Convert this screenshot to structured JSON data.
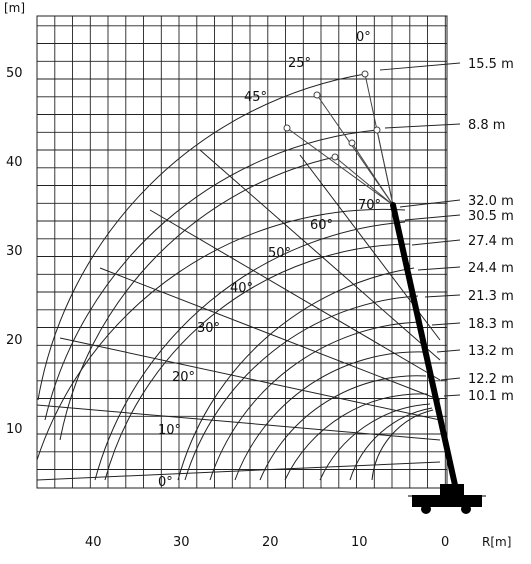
{
  "axes": {
    "y_unit": "[m]",
    "x_unit": "R[m]",
    "y_ticks": [
      "50",
      "40",
      "30",
      "20",
      "10"
    ],
    "x_ticks": [
      "40",
      "30",
      "20",
      "10",
      "0"
    ]
  },
  "boom_lengths": [
    "32.0 m",
    "30.5 m",
    "27.4 m",
    "24.4 m",
    "21.3 m",
    "18.3 m",
    "13.2 m",
    "12.2 m",
    "10.1 m"
  ],
  "jib_lengths": [
    "15.5 m",
    "8.8 m"
  ],
  "boom_angles": [
    "70°",
    "60°",
    "50°",
    "40°",
    "30°",
    "20°",
    "10°",
    "0°"
  ],
  "jib_offsets": [
    "0°",
    "25°",
    "45°"
  ],
  "colors": {
    "lines": "#222222",
    "boom": "#000000",
    "background": "#ffffff"
  }
}
